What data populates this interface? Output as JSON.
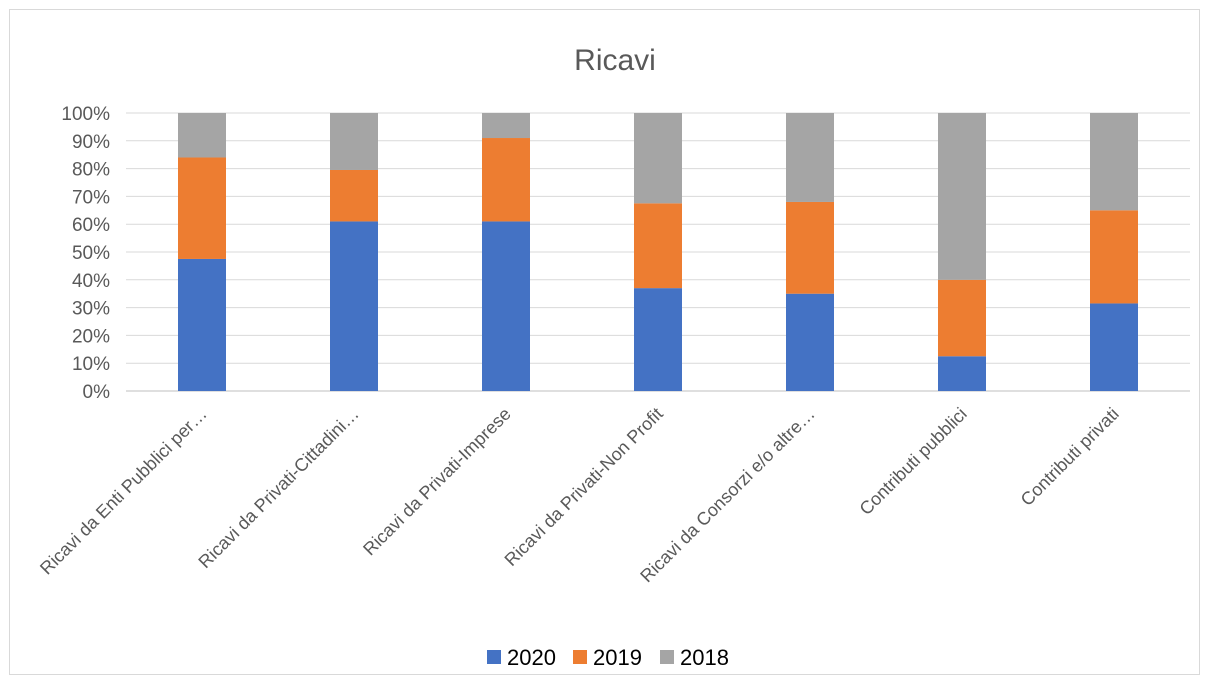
{
  "chart_data": {
    "type": "bar",
    "stacked": true,
    "normalized": true,
    "title": "Ricavi",
    "xlabel": "",
    "ylabel": "",
    "ylim": [
      0,
      100
    ],
    "y_ticks": [
      "0%",
      "10%",
      "20%",
      "30%",
      "40%",
      "50%",
      "60%",
      "70%",
      "80%",
      "90%",
      "100%"
    ],
    "grid": true,
    "legend_position": "bottom",
    "categories": [
      "Ricavi da Enti Pubblici per…",
      "Ricavi da Privati-Cittadini…",
      "Ricavi da Privati-Imprese",
      "Ricavi da Privati-Non Profit",
      "Ricavi da Consorzi e/o altre…",
      "Contributi pubblici",
      "Contributi privati"
    ],
    "series": [
      {
        "name": "2020",
        "color": "#4472c4",
        "values": [
          47.5,
          61,
          61,
          37,
          35,
          12.5,
          31.5
        ]
      },
      {
        "name": "2019",
        "color": "#ed7d31",
        "values": [
          36.5,
          18.5,
          30,
          30.5,
          33,
          27.5,
          33.5
        ]
      },
      {
        "name": "2018",
        "color": "#a5a5a5",
        "values": [
          16,
          20.5,
          9,
          32.5,
          32,
          60,
          35
        ]
      }
    ]
  }
}
